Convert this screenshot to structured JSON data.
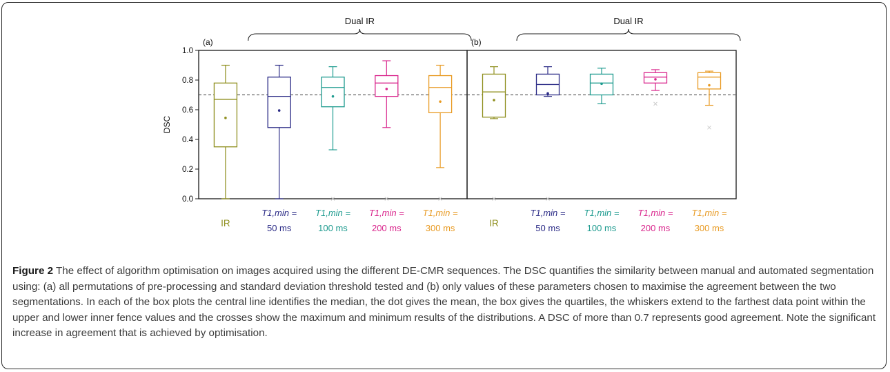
{
  "chart_data": [
    {
      "type": "box",
      "panel_label": "(a)",
      "group_label": "Dual IR",
      "ylabel": "DSC",
      "ylim": [
        0.0,
        1.0
      ],
      "yticks": [
        0.0,
        0.2,
        0.4,
        0.6,
        0.8,
        1.0
      ],
      "yticklabels": [
        "0.0",
        "0.2",
        "0.4",
        "0.6",
        "0.8",
        "1.0"
      ],
      "reference_line": 0.7,
      "categories": [
        {
          "line1": "IR",
          "line2": "",
          "color": "#8f8f1e"
        },
        {
          "line1": "T1,min =",
          "line2": "50 ms",
          "color": "#2b2b86"
        },
        {
          "line1": "T1,min =",
          "line2": "100 ms",
          "color": "#1e9b8f"
        },
        {
          "line1": "T1,min =",
          "line2": "200 ms",
          "color": "#d9258c"
        },
        {
          "line1": "T1,min =",
          "line2": "300 ms",
          "color": "#e89a22"
        }
      ],
      "boxes": [
        {
          "whisker_low": 0.0,
          "q1": 0.35,
          "median": 0.67,
          "q3": 0.78,
          "whisker_high": 0.9,
          "mean": 0.545,
          "extrema": []
        },
        {
          "whisker_low": 0.0,
          "q1": 0.48,
          "median": 0.69,
          "q3": 0.82,
          "whisker_high": 0.9,
          "mean": 0.595,
          "extrema": []
        },
        {
          "whisker_low": 0.33,
          "q1": 0.62,
          "median": 0.75,
          "q3": 0.82,
          "whisker_high": 0.89,
          "mean": 0.69,
          "extrema": [
            0.0
          ]
        },
        {
          "whisker_low": 0.48,
          "q1": 0.69,
          "median": 0.78,
          "q3": 0.83,
          "whisker_high": 0.93,
          "mean": 0.74,
          "extrema": [
            0.0
          ]
        },
        {
          "whisker_low": 0.21,
          "q1": 0.58,
          "median": 0.75,
          "q3": 0.83,
          "whisker_high": 0.9,
          "mean": 0.655,
          "extrema": [
            0.0
          ]
        }
      ]
    },
    {
      "type": "box",
      "panel_label": "(b)",
      "group_label": "Dual IR",
      "ylim": [
        0.0,
        1.0
      ],
      "reference_line": 0.7,
      "categories": [
        {
          "line1": "IR",
          "line2": "",
          "color": "#8f8f1e"
        },
        {
          "line1": "T1,min =",
          "line2": "50 ms",
          "color": "#2b2b86"
        },
        {
          "line1": "T1,min =",
          "line2": "100 ms",
          "color": "#1e9b8f"
        },
        {
          "line1": "T1,min =",
          "line2": "200 ms",
          "color": "#d9258c"
        },
        {
          "line1": "T1,min =",
          "line2": "300 ms",
          "color": "#e89a22"
        }
      ],
      "boxes": [
        {
          "whisker_low": 0.54,
          "q1": 0.55,
          "median": 0.72,
          "q3": 0.84,
          "whisker_high": 0.89,
          "mean": 0.665,
          "extrema": [
            0.0
          ]
        },
        {
          "whisker_low": 0.69,
          "q1": 0.7,
          "median": 0.77,
          "q3": 0.84,
          "whisker_high": 0.89,
          "mean": 0.71,
          "extrema": [
            0.0
          ]
        },
        {
          "whisker_low": 0.64,
          "q1": 0.7,
          "median": 0.78,
          "q3": 0.84,
          "whisker_high": 0.88,
          "mean": 0.775,
          "extrema": []
        },
        {
          "whisker_low": 0.73,
          "q1": 0.78,
          "median": 0.82,
          "q3": 0.85,
          "whisker_high": 0.87,
          "mean": 0.805,
          "extrema": [
            0.64
          ]
        },
        {
          "whisker_low": 0.63,
          "q1": 0.74,
          "median": 0.82,
          "q3": 0.85,
          "whisker_high": 0.86,
          "mean": 0.765,
          "extrema": [
            0.48
          ]
        }
      ]
    }
  ],
  "caption": {
    "label": "Figure 2",
    "text": "The effect of algorithm optimisation on images acquired using the different DE-CMR sequences. The DSC quantifies the similarity between manual and automated segmentation using: (a) all permutations of pre-processing and standard deviation threshold tested and (b) only values of these parameters chosen to maximise the agreement between the two segmentations. In each of the box plots the central line identifies the median, the dot gives the mean, the box gives the quartiles, the whiskers extend to the farthest data point within the upper and lower inner fence values and the crosses show the maximum and minimum results of the distributions. A DSC of more than 0.7 represents good agreement. Note the significant increase in agreement that is achieved by optimisation."
  },
  "colors": {
    "axis": "#1a1a1a",
    "reference_line": "#333333",
    "extrema_marker": "#cccccc",
    "caption_text": "#3a3a3a"
  }
}
